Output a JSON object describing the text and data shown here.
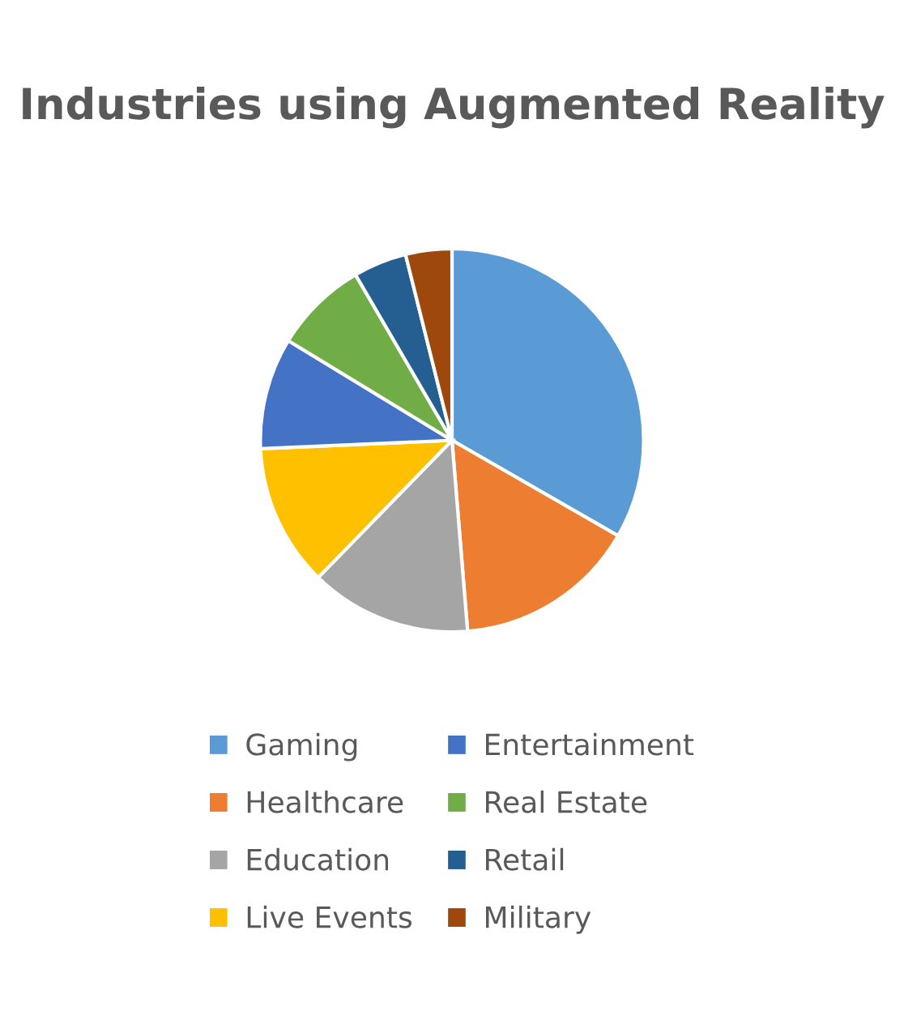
{
  "chart_data": {
    "type": "pie",
    "title": "Industries using Augmented Reality",
    "categories": [
      "Gaming",
      "Healthcare",
      "Education",
      "Live Events",
      "Entertainment",
      "Real Estate",
      "Retail",
      "Military"
    ],
    "values": [
      33.3,
      15.4,
      13.6,
      12,
      9.4,
      7.9,
      4.5,
      3.9
    ],
    "colors": [
      "#5b9bd5",
      "#ed7d31",
      "#a5a5a5",
      "#ffc000",
      "#4472c4",
      "#70ad47",
      "#255e91",
      "#9e480e"
    ],
    "legend": "bottom"
  }
}
